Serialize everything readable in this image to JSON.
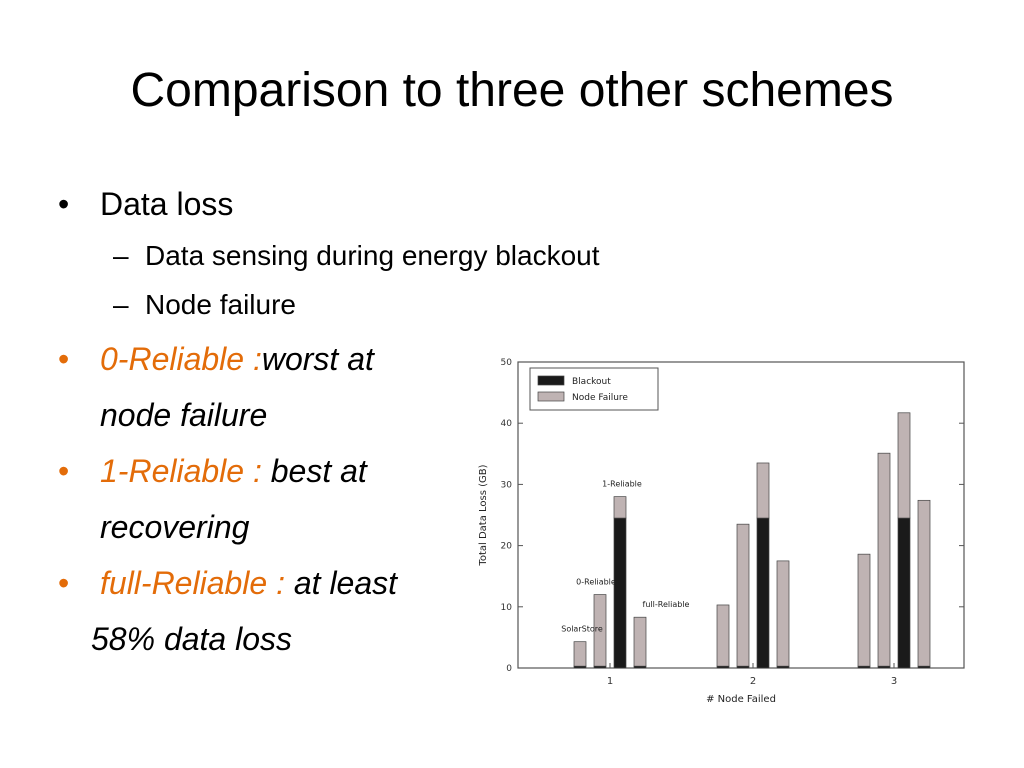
{
  "slide": {
    "title": "Comparison to three other schemes",
    "bullet_glyph": "•",
    "dash_glyph": "–",
    "bullets": [
      {
        "text": "Data loss"
      },
      {
        "text": "Data sensing during energy blackout"
      },
      {
        "text": "Node failure"
      },
      {
        "highlight": "0-Reliable :",
        "text_line1": "worst at",
        "text_line2": "node failure"
      },
      {
        "highlight": "1-Reliable :",
        "text_line1": "best at",
        "text_line2": "recovering"
      },
      {
        "highlight": "full-Reliable :",
        "text_line1": "at least",
        "text_line2": "58% data loss"
      }
    ]
  },
  "colors": {
    "accent": "#E36C09",
    "blackout": "#1a1a1a",
    "node_failure": "#bfb3b3"
  },
  "chart_data": {
    "type": "bar",
    "stacked": true,
    "xlabel": "# Node Failed",
    "ylabel": "Total Data Loss (GB)",
    "ylim": [
      0,
      50
    ],
    "yticks": [
      0,
      10,
      20,
      30,
      40,
      50
    ],
    "categories": [
      "1",
      "2",
      "3"
    ],
    "schemes": [
      "SolarStore",
      "0-Reliable",
      "1-Reliable",
      "full-Reliable"
    ],
    "legend_position": "top-left",
    "series": [
      {
        "name": "Blackout",
        "values": [
          [
            0.3,
            0.3,
            24.5,
            0.3
          ],
          [
            0.3,
            0.3,
            24.5,
            0.3
          ],
          [
            0.3,
            0.3,
            24.5,
            0.3
          ]
        ]
      },
      {
        "name": "Node Failure",
        "values": [
          [
            4.0,
            11.7,
            3.5,
            8.0
          ],
          [
            10.0,
            23.2,
            9.0,
            17.2
          ],
          [
            18.3,
            34.8,
            17.2,
            27.1
          ]
        ]
      }
    ],
    "annotations": [
      {
        "text": "SolarStore",
        "category": "1",
        "scheme": 0
      },
      {
        "text": "0-Reliable",
        "category": "1",
        "scheme": 1
      },
      {
        "text": "1-Reliable",
        "category": "1",
        "scheme": 2
      },
      {
        "text": "full-Reliable",
        "category": "1",
        "scheme": 3
      }
    ]
  }
}
